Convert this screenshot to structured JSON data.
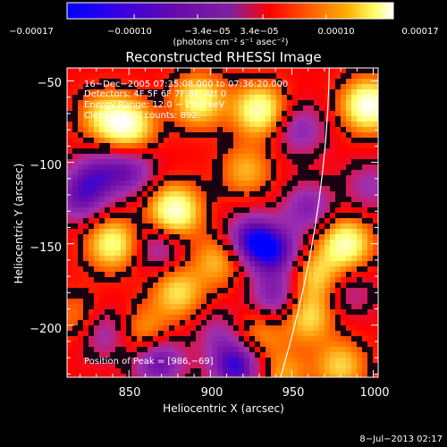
{
  "chart_data": {
    "type": "heatmap",
    "title": "Reconstructed RHESSI Image",
    "xlabel": "Heliocentric X (arcsec)",
    "ylabel": "Heliocentric Y (arcsec)",
    "xlim": [
      812,
      1003
    ],
    "ylim": [
      -232,
      -42
    ],
    "x_ticks": [
      850,
      900,
      950,
      1000
    ],
    "x_tick_labels": [
      "850",
      "900",
      "950",
      "1000"
    ],
    "y_ticks": [
      -50,
      -100,
      -150,
      -200
    ],
    "y_tick_labels": [
      "−50",
      "−100",
      "−150",
      "−200"
    ],
    "colorbar": {
      "label": "(photons cm⁻² s⁻¹ asec⁻²)",
      "range": [
        -0.00017,
        0.00017
      ],
      "ticks": [
        -0.00017,
        -0.0001,
        -3.4e-05,
        3.4e-05,
        0.0001,
        0.00017
      ],
      "tick_labels": [
        "−0.00017",
        "−0.00010",
        "−3.4e−05",
        "3.4e−05",
        "0.00010",
        "0.00017"
      ],
      "colors": [
        "#0000ff",
        "#6a0aaa",
        "#a030b0",
        "#ff0000",
        "#ff8800",
        "#ffff66",
        "#ffffff"
      ]
    },
    "info_lines": [
      "16−Dec−2005 07:35:08.000 to 07:36:20.000",
      "Detectors: 4F 5F 6F 7F 8F; Att 0",
      "Energy Range: 12.0 − 25.0 keV",
      "Clean    Total counts: 892."
    ],
    "peak_label": "Position of Peak = [986,−69]",
    "peak_position": [
      986,
      -69
    ],
    "limb_x_at_top": 973,
    "limb_x_at_bottom": 943,
    "blobs": [
      {
        "x": 997,
        "y": -65,
        "v": 1.0
      },
      {
        "x": 983,
        "y": -150,
        "v": 0.85
      },
      {
        "x": 960,
        "y": -195,
        "v": 0.6
      },
      {
        "x": 930,
        "y": -68,
        "v": 0.85
      },
      {
        "x": 893,
        "y": -62,
        "v": 0.75
      },
      {
        "x": 850,
        "y": -78,
        "v": 0.8
      },
      {
        "x": 835,
        "y": -72,
        "v": 0.55
      },
      {
        "x": 878,
        "y": -130,
        "v": 0.95
      },
      {
        "x": 840,
        "y": -150,
        "v": 0.75
      },
      {
        "x": 905,
        "y": -160,
        "v": 0.5
      },
      {
        "x": 880,
        "y": -180,
        "v": 0.6
      },
      {
        "x": 965,
        "y": -170,
        "v": 0.55
      },
      {
        "x": 922,
        "y": -105,
        "v": 0.45
      },
      {
        "x": 860,
        "y": -205,
        "v": 0.45
      },
      {
        "x": 980,
        "y": -225,
        "v": 0.55
      },
      {
        "x": 930,
        "y": -205,
        "v": 0.4
      },
      {
        "x": 945,
        "y": -230,
        "v": 0.4
      },
      {
        "x": 818,
        "y": -195,
        "v": 0.3
      },
      {
        "x": 925,
        "y": -148,
        "v": -0.8
      },
      {
        "x": 940,
        "y": -155,
        "v": -0.7
      },
      {
        "x": 940,
        "y": -183,
        "v": -0.55
      },
      {
        "x": 916,
        "y": -225,
        "v": -0.85
      },
      {
        "x": 868,
        "y": -222,
        "v": -0.7
      },
      {
        "x": 850,
        "y": -105,
        "v": -0.55
      },
      {
        "x": 835,
        "y": -205,
        "v": -0.4
      },
      {
        "x": 960,
        "y": -128,
        "v": -0.5
      },
      {
        "x": 955,
        "y": -80,
        "v": -0.45
      },
      {
        "x": 905,
        "y": -205,
        "v": -0.3
      },
      {
        "x": 985,
        "y": -180,
        "v": -0.3
      },
      {
        "x": 998,
        "y": -115,
        "v": -0.35
      },
      {
        "x": 820,
        "y": -122,
        "v": -0.55
      },
      {
        "x": 830,
        "y": -108,
        "v": -0.5
      },
      {
        "x": 868,
        "y": -152,
        "v": -0.4
      }
    ]
  },
  "footer": {
    "date": "8−Jul−2013 02:17"
  }
}
